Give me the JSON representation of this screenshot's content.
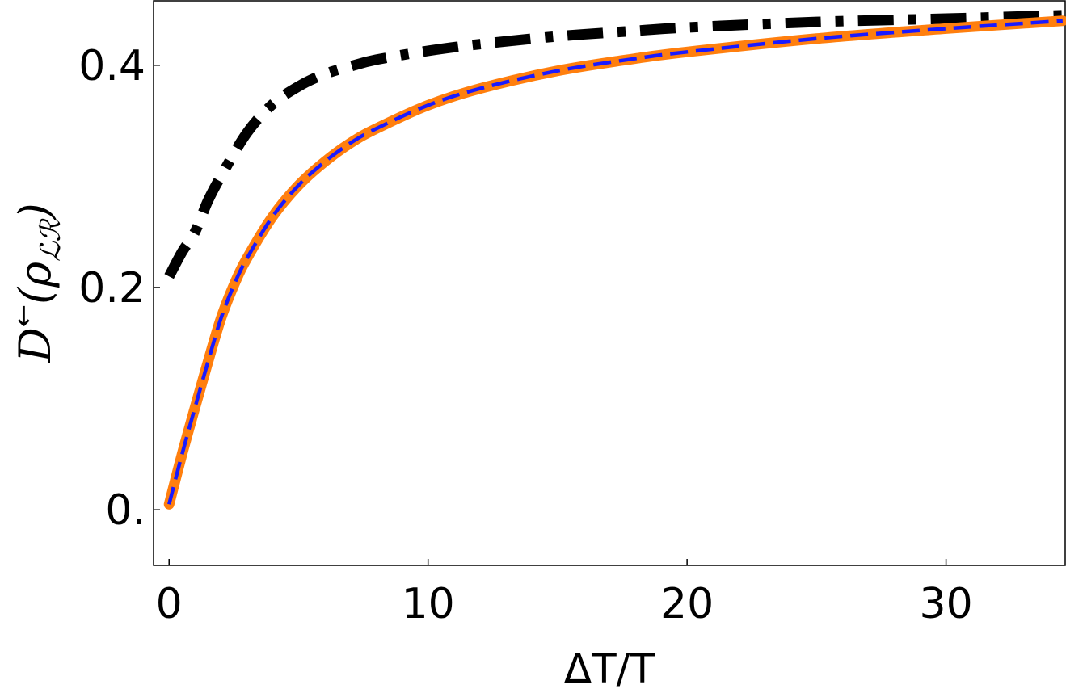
{
  "chart_data": {
    "type": "line",
    "xlabel": "ΔT/T",
    "ylabel": {
      "main": "D",
      "superscript": "←",
      "open": "(ρ",
      "subscript": "ℒℛ",
      "close": ")"
    },
    "xlim": [
      -0.6,
      34.6
    ],
    "ylim": [
      -0.05,
      0.458
    ],
    "x_ticks": [
      0,
      10,
      20,
      30
    ],
    "x_tick_labels": [
      "0",
      "10",
      "20",
      "30"
    ],
    "y_ticks": [
      0,
      0.2,
      0.4
    ],
    "y_tick_labels": [
      "0.",
      "0.2",
      "0.4"
    ],
    "grid": false,
    "legend": "none",
    "series": [
      {
        "style": "dash-dot",
        "color": "#000000",
        "x": [
          0,
          0.5,
          1,
          1.5,
          2,
          3,
          4,
          5,
          6,
          7,
          8,
          10,
          12,
          15,
          18,
          20,
          25,
          30,
          34.5
        ],
        "y": [
          0.21,
          0.232,
          0.25,
          0.278,
          0.3,
          0.339,
          0.365,
          0.381,
          0.392,
          0.399,
          0.405,
          0.413,
          0.419,
          0.426,
          0.431,
          0.434,
          0.439,
          0.442,
          0.445
        ]
      },
      {
        "style": "solid",
        "color": "#ff7f0e",
        "x": [
          0,
          0.5,
          1,
          1.5,
          2,
          2.5,
          3,
          4,
          5,
          6,
          7,
          8,
          10,
          12,
          15,
          18,
          20,
          25,
          30,
          34.5
        ],
        "y": [
          0.005,
          0.05,
          0.092,
          0.133,
          0.172,
          0.202,
          0.226,
          0.264,
          0.292,
          0.313,
          0.33,
          0.343,
          0.364,
          0.379,
          0.395,
          0.406,
          0.412,
          0.424,
          0.433,
          0.44
        ]
      },
      {
        "style": "dashed",
        "color": "#1a1aff",
        "x": [
          0,
          0.5,
          1,
          1.5,
          2,
          2.5,
          3,
          4,
          5,
          6,
          7,
          8,
          10,
          12,
          15,
          18,
          20,
          25,
          30,
          34.5
        ],
        "y": [
          0.005,
          0.05,
          0.092,
          0.133,
          0.172,
          0.202,
          0.226,
          0.264,
          0.292,
          0.313,
          0.33,
          0.343,
          0.364,
          0.379,
          0.395,
          0.406,
          0.412,
          0.424,
          0.433,
          0.44
        ]
      }
    ]
  }
}
